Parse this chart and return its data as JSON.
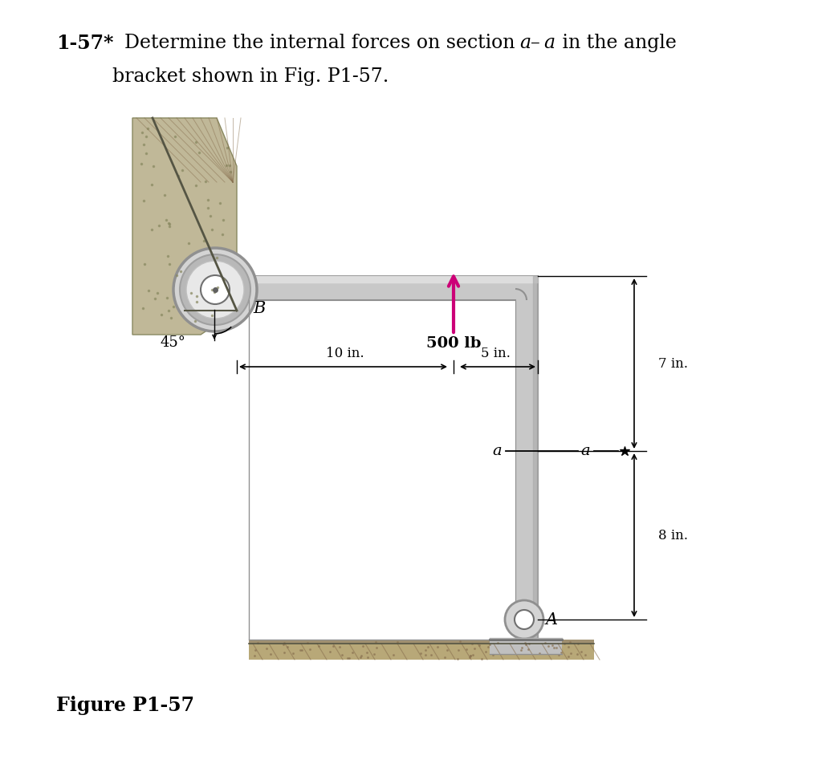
{
  "background": "#ffffff",
  "bracket_fill": "#c8c8c8",
  "bracket_edge": "#909090",
  "bracket_light": "#e0e0e0",
  "bracket_dark": "#aaaaaa",
  "wall_fill": "#c0b898",
  "wall_edge": "#888870",
  "ground_fill": "#b8a878",
  "force_color": "#cc0077",
  "pin_fill": "#d8d8d8",
  "pin_edge": "#808080",
  "dim_line_color": "#000000",
  "text_color": "#000000",
  "force_label": "500 lb",
  "dim_10": "10 in.",
  "dim_5": "5 in.",
  "dim_7": "7 in.",
  "dim_8": "8 in.",
  "angle_label": "45°",
  "label_B": "B",
  "label_A": "A",
  "label_a": "a",
  "figure_label": "Figure P1-57",
  "title_bold": "1-57*",
  "title_normal": "  Determine the internal forces on section ",
  "title_italic_a1": "a",
  "title_dash": "–",
  "title_italic_a2": "a",
  "title_normal2": " in the angle",
  "title_line2": "bracket shown in Fig. P1-57."
}
